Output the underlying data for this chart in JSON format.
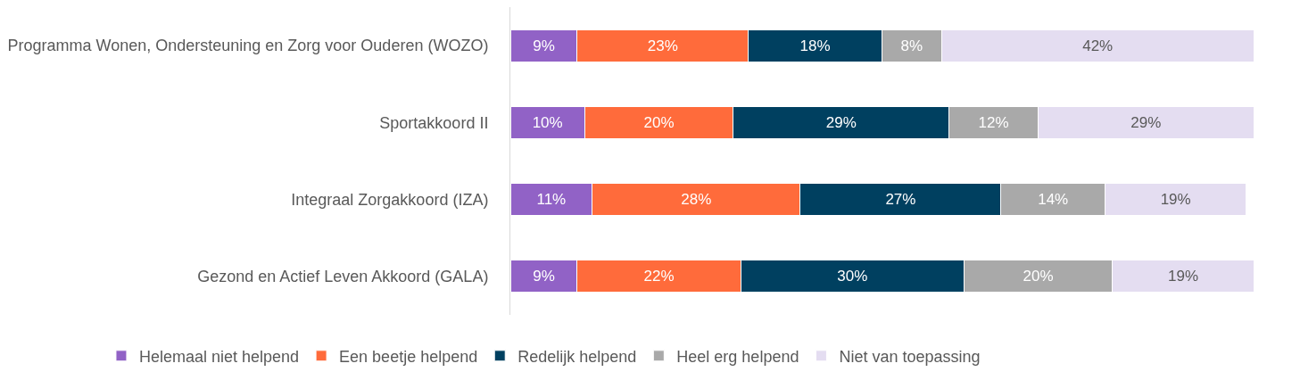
{
  "chart_data": {
    "type": "bar",
    "orientation": "horizontal",
    "stacked": true,
    "legend": "bottom",
    "categories": [
      "Programma Wonen, Ondersteuning en Zorg voor Ouderen (WOZO)",
      "Sportakkoord II",
      "Integraal Zorgakkoord (IZA)",
      "Gezond en Actief Leven Akkoord (GALA)"
    ],
    "series": [
      {
        "name": "Helemaal niet helpend",
        "color": "#9162c6",
        "values": [
          9,
          10,
          11,
          9
        ],
        "value_labels": [
          "9%",
          "10%",
          "11%",
          "9%"
        ]
      },
      {
        "name": "Een beetje helpend",
        "color": "#ff6b3b",
        "values": [
          23,
          20,
          28,
          22
        ],
        "value_labels": [
          "23%",
          "20%",
          "28%",
          "22%"
        ]
      },
      {
        "name": "Redelijk helpend",
        "color": "#004060",
        "values": [
          18,
          29,
          27,
          30
        ],
        "value_labels": [
          "18%",
          "29%",
          "27%",
          "30%"
        ]
      },
      {
        "name": "Heel erg helpend",
        "color": "#a9a9a9",
        "values": [
          8,
          12,
          14,
          20
        ],
        "value_labels": [
          "8%",
          "12%",
          "14%",
          "20%"
        ]
      },
      {
        "name": "Niet van toepassing",
        "color": "#e4ddf1",
        "values": [
          42,
          29,
          19,
          19
        ],
        "value_labels": [
          "42%",
          "29%",
          "19%",
          "19%"
        ]
      }
    ]
  }
}
